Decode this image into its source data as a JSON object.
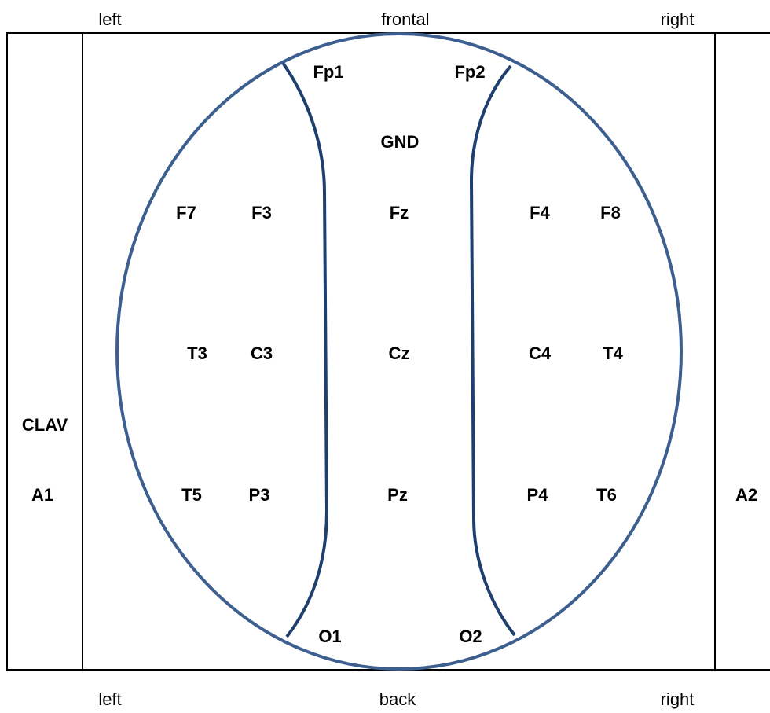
{
  "orientation": {
    "top_left": "left",
    "top_center": "frontal",
    "top_right": "right",
    "bottom_left": "left",
    "bottom_center": "back",
    "bottom_right": "right"
  },
  "side_labels": {
    "clav": "CLAV",
    "a1": "A1",
    "a2": "A2"
  },
  "electrodes": {
    "fp1": "Fp1",
    "fp2": "Fp2",
    "gnd": "GND",
    "f7": "F7",
    "f3": "F3",
    "fz": "Fz",
    "f4": "F4",
    "f8": "F8",
    "t3": "T3",
    "c3": "C3",
    "cz": "Cz",
    "c4": "C4",
    "t4": "T4",
    "t5": "T5",
    "p3": "P3",
    "pz": "Pz",
    "p4": "P4",
    "t6": "T6",
    "o1": "O1",
    "o2": "O2"
  },
  "colors": {
    "head_outline": "#3d5f8f",
    "divider_curves": "#1f3f6e",
    "box_lines": "#000000",
    "text": "#000000"
  }
}
